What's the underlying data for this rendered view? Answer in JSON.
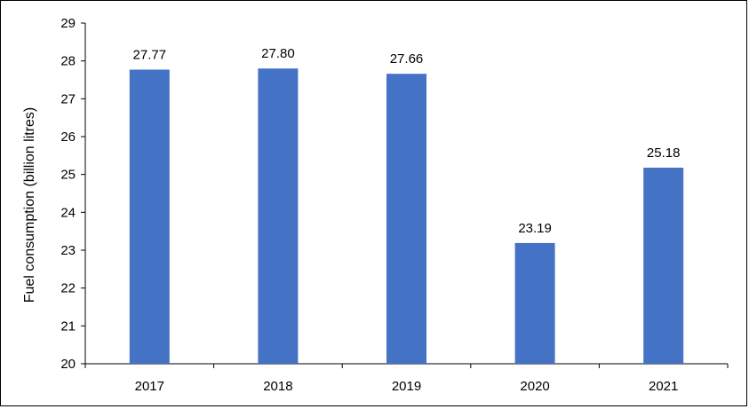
{
  "chart_data": {
    "type": "bar",
    "categories": [
      "2017",
      "2018",
      "2019",
      "2020",
      "2021"
    ],
    "values": [
      27.77,
      27.8,
      27.66,
      23.19,
      25.18
    ],
    "data_labels": [
      "27.77",
      "27.80",
      "27.66",
      "23.19",
      "25.18"
    ],
    "ylabel": "Fuel consumption  (billion litres)",
    "ylim": [
      20,
      29
    ],
    "yticks": [
      "20",
      "21",
      "22",
      "23",
      "24",
      "25",
      "26",
      "27",
      "28",
      "29"
    ],
    "grid": false,
    "legend": "none",
    "bar_color": "#4472C4",
    "axis_color": "#000000"
  }
}
